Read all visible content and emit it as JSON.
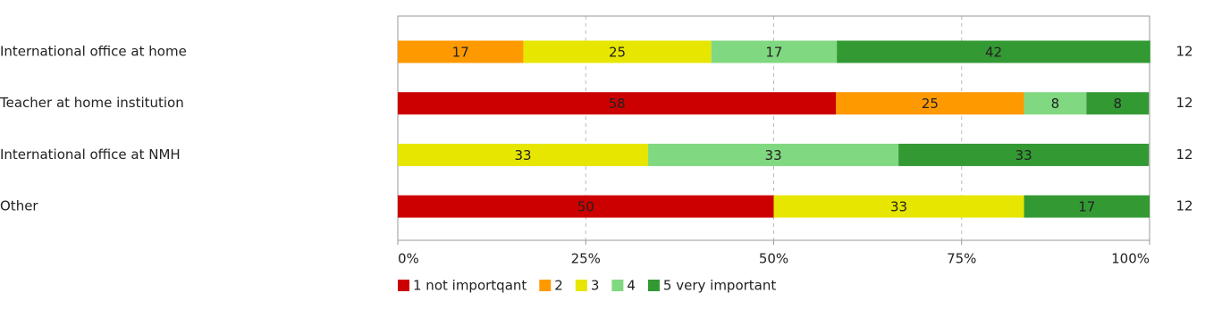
{
  "chart_data": {
    "type": "stacked-bar-horizontal",
    "categories": [
      "International office at home",
      "Teacher at home institution",
      "International office at NMH",
      "Other"
    ],
    "series": [
      {
        "name": "1 not importqant",
        "color": "#cc0000",
        "values": [
          null,
          58.3,
          null,
          50
        ],
        "value_labels": [
          null,
          "58",
          null,
          "50"
        ]
      },
      {
        "name": "2",
        "color": "#ff9900",
        "values": [
          16.7,
          25,
          null,
          null
        ],
        "value_labels": [
          "17",
          "25",
          null,
          null
        ]
      },
      {
        "name": "3",
        "color": "#e6e600",
        "values": [
          25,
          null,
          33.3,
          33.3
        ],
        "value_labels": [
          "25",
          null,
          "33",
          "33"
        ]
      },
      {
        "name": "4",
        "color": "#80d880",
        "values": [
          16.7,
          8.3,
          33.3,
          null
        ],
        "value_labels": [
          "17",
          "8",
          "33",
          null
        ]
      },
      {
        "name": "5 very important",
        "color": "#339933",
        "values": [
          41.7,
          8.3,
          33.3,
          16.7
        ],
        "value_labels": [
          "42",
          "8",
          "33",
          "17"
        ]
      }
    ],
    "n": [
      12,
      12,
      12,
      12
    ],
    "xlim": [
      0,
      100
    ],
    "xticks": [
      {
        "value": 0,
        "label": "0%"
      },
      {
        "value": 25,
        "label": "25%"
      },
      {
        "value": 50,
        "label": "50%"
      },
      {
        "value": 75,
        "label": "75%"
      },
      {
        "value": 100,
        "label": "100%"
      }
    ],
    "grid": true
  }
}
